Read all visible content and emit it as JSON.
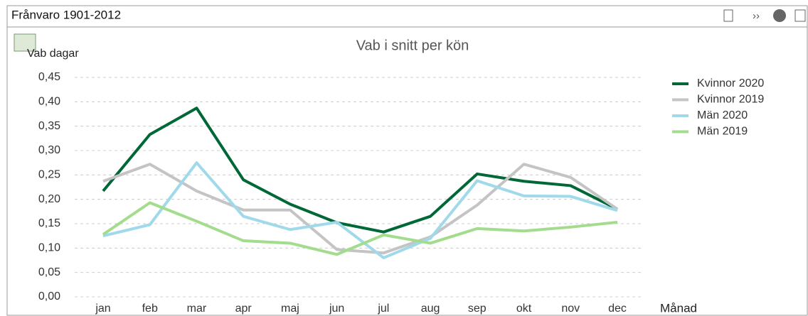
{
  "window": {
    "title": "Frånvaro 1901-2012"
  },
  "chart_data": {
    "type": "line",
    "title": "Vab i snitt per kön",
    "y_label": "Vab dagar",
    "x_label": "Månad",
    "categories": [
      "jan",
      "feb",
      "mar",
      "apr",
      "maj",
      "jun",
      "jul",
      "aug",
      "sep",
      "okt",
      "nov",
      "dec"
    ],
    "series": [
      {
        "name": "Kvinnor 2020",
        "color": "#006837",
        "values": [
          0.217,
          0.333,
          0.387,
          0.24,
          0.19,
          0.152,
          0.133,
          0.165,
          0.252,
          0.237,
          0.228,
          0.18
        ]
      },
      {
        "name": "Kvinnor 2019",
        "color": "#c4c4c4",
        "values": [
          0.237,
          0.272,
          0.217,
          0.178,
          0.178,
          0.097,
          0.09,
          0.123,
          0.188,
          0.272,
          0.245,
          0.18
        ]
      },
      {
        "name": "Män 2020",
        "color": "#9fd9ea",
        "values": [
          0.125,
          0.148,
          0.275,
          0.165,
          0.138,
          0.153,
          0.08,
          0.12,
          0.238,
          0.207,
          0.206,
          0.177
        ]
      },
      {
        "name": "Män 2019",
        "color": "#a3dc8c",
        "values": [
          0.128,
          0.193,
          0.155,
          0.115,
          0.11,
          0.087,
          0.127,
          0.11,
          0.14,
          0.135,
          0.143,
          0.153
        ]
      }
    ],
    "ylim": [
      0,
      0.45
    ],
    "yticks": [
      {
        "value": 0,
        "label": "0,00"
      },
      {
        "value": 0.05,
        "label": "0,05"
      },
      {
        "value": 0.1,
        "label": "0,10"
      },
      {
        "value": 0.15,
        "label": "0,15"
      },
      {
        "value": 0.2,
        "label": "0,20"
      },
      {
        "value": 0.25,
        "label": "0,25"
      },
      {
        "value": 0.3,
        "label": "0,30"
      },
      {
        "value": 0.35,
        "label": "0,35"
      },
      {
        "value": 0.4,
        "label": "0,40"
      },
      {
        "value": 0.45,
        "label": "0,45"
      }
    ],
    "grid": true,
    "legend": "right"
  }
}
